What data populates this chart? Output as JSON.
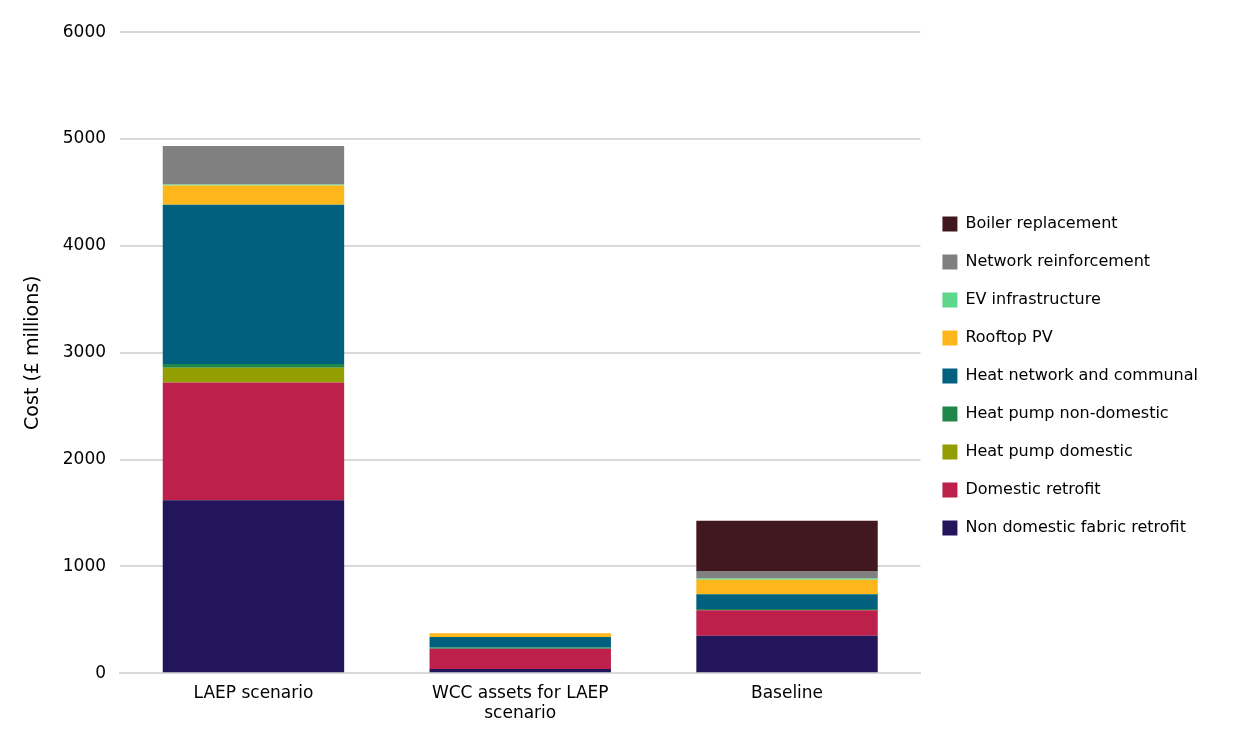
{
  "chart_data": {
    "type": "bar",
    "stacked": true,
    "ylabel": "Cost (£ millions)",
    "categories": [
      "LAEP scenario",
      "WCC assets for LAEP scenario",
      "Baseline"
    ],
    "series": [
      {
        "name": "Non domestic fabric retrofit",
        "color": "#22155c",
        "values": [
          1620,
          40,
          350
        ]
      },
      {
        "name": "Domestic retrofit",
        "color": "#bc204b",
        "values": [
          1100,
          190,
          240
        ]
      },
      {
        "name": "Heat pump domestic",
        "color": "#939e00",
        "values": [
          140,
          0,
          0
        ]
      },
      {
        "name": "Heat pump non-domestic",
        "color": "#218649",
        "values": [
          35,
          10,
          10
        ]
      },
      {
        "name": "Heat network and communal",
        "color": "#00607e",
        "values": [
          1490,
          100,
          140
        ]
      },
      {
        "name": "Rooftop PV",
        "color": "#fdb71b",
        "values": [
          180,
          35,
          135
        ]
      },
      {
        "name": "EV infrastructure",
        "color": "#5ed68b",
        "values": [
          10,
          0,
          12
        ]
      },
      {
        "name": "Network reinforcement",
        "color": "#808080",
        "values": [
          360,
          0,
          70
        ]
      },
      {
        "name": "Boiler replacement",
        "color": "#421820",
        "values": [
          0,
          0,
          470
        ]
      }
    ],
    "ylim": [
      0,
      6000
    ],
    "yticks": [
      0,
      1000,
      2000,
      3000,
      4000,
      5000,
      6000
    ],
    "grid": "y",
    "legend": "right"
  }
}
